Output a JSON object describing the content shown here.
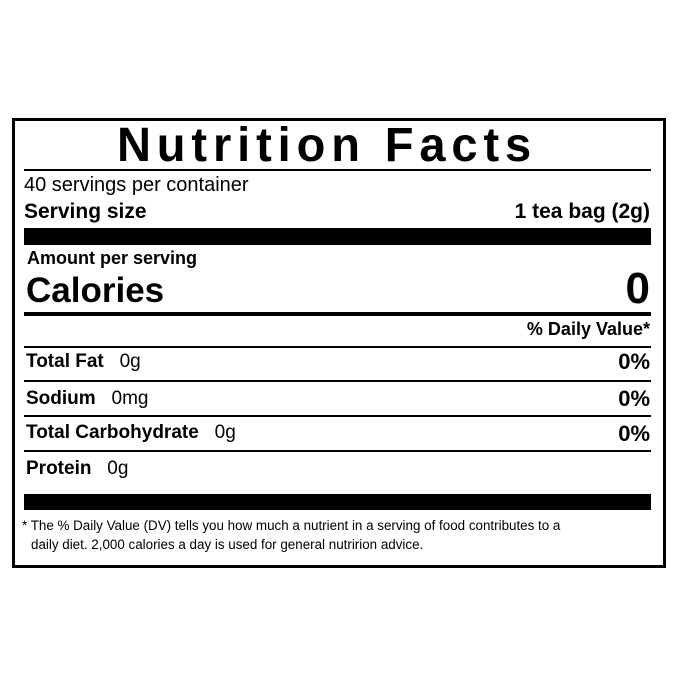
{
  "title": "Nutrition Facts",
  "servings_per_container": "40 servings per container",
  "serving_size": {
    "label": "Serving size",
    "value": "1 tea bag (2g)"
  },
  "amount_per_serving": "Amount per serving",
  "calories": {
    "label": "Calories",
    "value": "0"
  },
  "daily_value_header": "% Daily Value*",
  "nutrients": [
    {
      "label": "Total Fat",
      "amount": "0g",
      "dv": "0%"
    },
    {
      "label": "Sodium",
      "amount": "0mg",
      "dv": "0%"
    },
    {
      "label": "Total Carbohydrate",
      "amount": "0g",
      "dv": "0%"
    },
    {
      "label": "Protein",
      "amount": "0g",
      "dv": ""
    }
  ],
  "footnote": {
    "line1": "* The % Daily Value (DV) tells you how much a nutrient in a serving of food contributes to a",
    "line2": "daily diet. 2,000 calories a day is used for general nutririon advice."
  }
}
